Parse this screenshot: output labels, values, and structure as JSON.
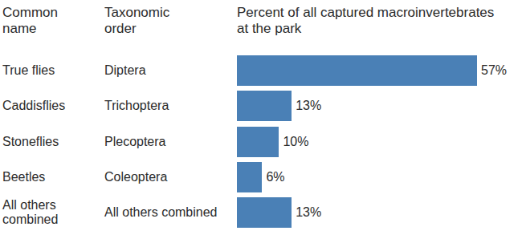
{
  "chart_data": {
    "type": "bar",
    "orientation": "horizontal",
    "headers": [
      "Common name",
      "Taxonomic order",
      "Percent of all captured macroinvertebrates at the park"
    ],
    "categories": [
      "True flies",
      "Caddisflies",
      "Stoneflies",
      "Beetles",
      "All others combined"
    ],
    "taxonomic_orders": [
      "Diptera",
      "Trichoptera",
      "Plecoptera",
      "Coleoptera",
      "All others combined"
    ],
    "values": [
      57,
      13,
      10,
      6,
      13
    ],
    "value_labels": [
      "57%",
      "13%",
      "10%",
      "6%",
      "13%"
    ],
    "data_labels": true,
    "tick_labels": false,
    "grid": false,
    "color": "#4a80b6"
  }
}
